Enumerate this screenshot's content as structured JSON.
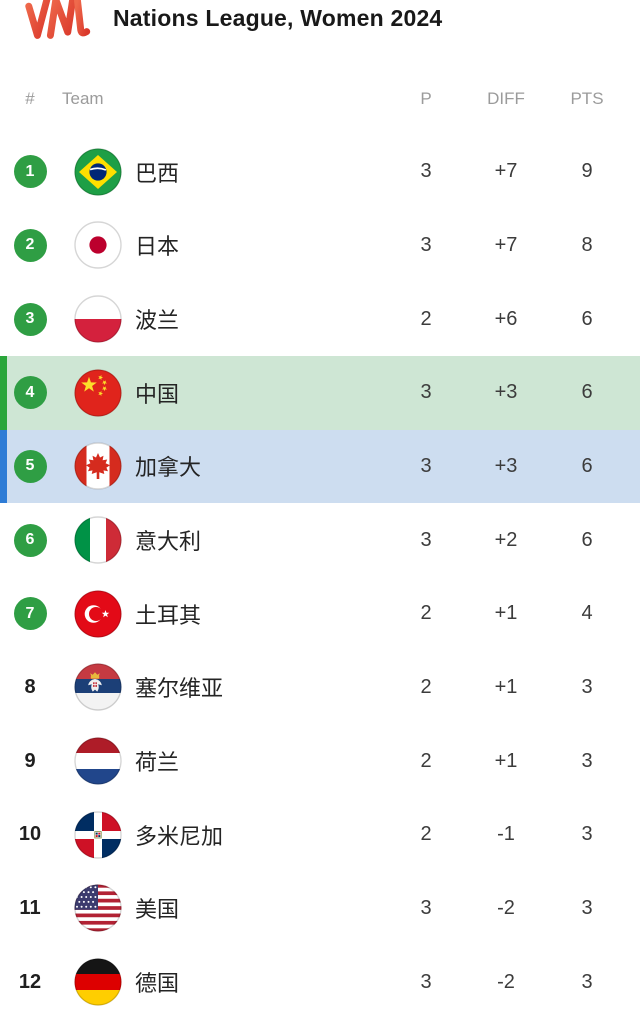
{
  "header": {
    "logo": "VNL",
    "title": "Nations League, Women 2024"
  },
  "columns": {
    "rank": "#",
    "team": "Team",
    "p": "P",
    "diff": "DIFF",
    "pts": "PTS"
  },
  "colors": {
    "badge_green": "#2f9e44",
    "highlight_green_bg": "#cee6d4",
    "highlight_green_border": "#2aa63b",
    "highlight_blue_bg": "#cdddf0",
    "highlight_blue_border": "#2e7cd6",
    "logo_red": "#e04a33",
    "header_text_gray": "#9b9b9b"
  },
  "rows": [
    {
      "rank": "1",
      "badge": true,
      "flag": "brazil",
      "team": "巴西",
      "p": "3",
      "diff": "+7",
      "pts": "9",
      "highlight": "none"
    },
    {
      "rank": "2",
      "badge": true,
      "flag": "japan",
      "team": "日本",
      "p": "3",
      "diff": "+7",
      "pts": "8",
      "highlight": "none"
    },
    {
      "rank": "3",
      "badge": true,
      "flag": "poland",
      "team": "波兰",
      "p": "2",
      "diff": "+6",
      "pts": "6",
      "highlight": "none"
    },
    {
      "rank": "4",
      "badge": true,
      "flag": "china",
      "team": "中国",
      "p": "3",
      "diff": "+3",
      "pts": "6",
      "highlight": "green"
    },
    {
      "rank": "5",
      "badge": true,
      "flag": "canada",
      "team": "加拿大",
      "p": "3",
      "diff": "+3",
      "pts": "6",
      "highlight": "blue"
    },
    {
      "rank": "6",
      "badge": true,
      "flag": "italy",
      "team": "意大利",
      "p": "3",
      "diff": "+2",
      "pts": "6",
      "highlight": "none"
    },
    {
      "rank": "7",
      "badge": true,
      "flag": "turkey",
      "team": "土耳其",
      "p": "2",
      "diff": "+1",
      "pts": "4",
      "highlight": "none"
    },
    {
      "rank": "8",
      "badge": false,
      "flag": "serbia",
      "team": "塞尔维亚",
      "p": "2",
      "diff": "+1",
      "pts": "3",
      "highlight": "none"
    },
    {
      "rank": "9",
      "badge": false,
      "flag": "netherlands",
      "team": "荷兰",
      "p": "2",
      "diff": "+1",
      "pts": "3",
      "highlight": "none"
    },
    {
      "rank": "10",
      "badge": false,
      "flag": "dominican-republic",
      "team": "多米尼加",
      "p": "2",
      "diff": "-1",
      "pts": "3",
      "highlight": "none"
    },
    {
      "rank": "11",
      "badge": false,
      "flag": "usa",
      "team": "美国",
      "p": "3",
      "diff": "-2",
      "pts": "3",
      "highlight": "none"
    },
    {
      "rank": "12",
      "badge": false,
      "flag": "germany",
      "team": "德国",
      "p": "3",
      "diff": "-2",
      "pts": "3",
      "highlight": "none"
    }
  ]
}
